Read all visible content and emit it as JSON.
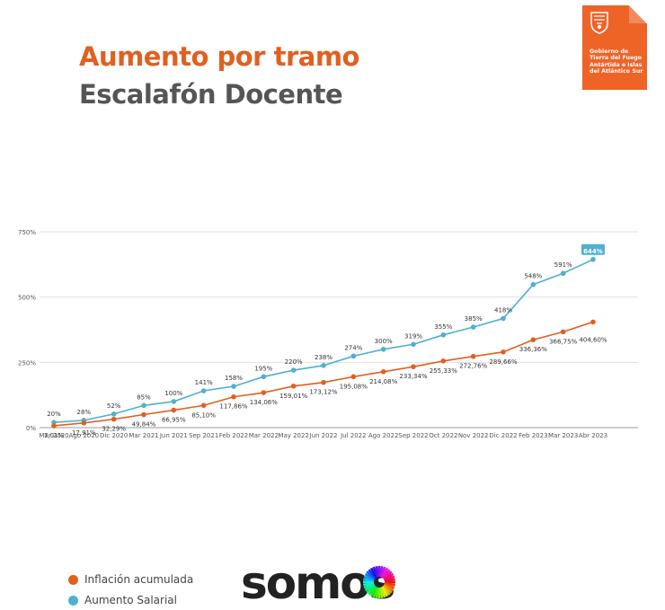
{
  "header": {
    "title": "Aumento por tramo",
    "subtitle": "Escalafón Docente"
  },
  "badge": {
    "icon": "provincial-coat-of-arms-icon",
    "lines": [
      "Gobierno de",
      "Tierra del Fuego",
      "Antártida e Islas",
      "del Atlántico Sur"
    ],
    "color": "#ee6326"
  },
  "legend": {
    "items": [
      {
        "label": "Inflación acumulada",
        "color": "#e06020"
      },
      {
        "label": "Aumento Salarial",
        "color": "#4fb0cf"
      }
    ]
  },
  "brand": {
    "text": "somos",
    "icon": "color-wheel-icon"
  },
  "chart_data": {
    "type": "line",
    "categories": [
      "Mar 2020",
      "Ago 2020",
      "Dic 2020",
      "Mar 2021",
      "Jun  2021",
      "Sep 2021",
      "Feb 2022",
      "Mar 2022",
      "May 2022",
      "Jun 2022",
      "Jul 2022",
      "Ago 2022",
      "Sep 2022",
      "Oct 2022",
      "Nov 2022",
      "Dic 2022",
      "Feb 2023",
      "Mar 2023",
      "Abr 2023"
    ],
    "ylim": [
      0,
      750
    ],
    "yticks": [
      0,
      250,
      500,
      750
    ],
    "ytick_labels": [
      "0%",
      "250%",
      "500%",
      "750%"
    ],
    "grid": true,
    "legend_position": "bottom-left",
    "series": [
      {
        "name": "Aumento Salarial",
        "color": "#4fb0cf",
        "values": [
          20,
          28,
          52,
          85,
          100,
          141,
          158,
          195,
          220,
          238,
          274,
          300,
          319,
          355,
          385,
          418,
          548,
          591,
          644
        ],
        "labels": [
          "20%",
          "28%",
          "52%",
          "85%",
          "100%",
          "141%",
          "158%",
          "195%",
          "220%",
          "238%",
          "274%",
          "300%",
          "319%",
          "355%",
          "385%",
          "418%",
          "548%",
          "591%",
          "644%"
        ]
      },
      {
        "name": "Inflación acumulada",
        "color": "#e06020",
        "values": [
          7.01,
          17.91,
          32.29,
          49.84,
          66.95,
          85.1,
          117.86,
          134.06,
          159.01,
          173.12,
          195.08,
          214.08,
          233.34,
          255.33,
          272.76,
          289.66,
          336.36,
          366.75,
          404.6
        ],
        "labels": [
          "7,01%",
          "17,91%",
          "32,29%",
          "49,84%",
          "66,95%",
          "85,10%",
          "117,86%",
          "134,06%",
          "159,01%",
          "173,12%",
          "195,08%",
          "214,08%",
          "233,34%",
          "255,33%",
          "272,76%",
          "289,66%",
          "336,36%",
          "366,75%",
          "404,60%"
        ]
      }
    ]
  }
}
